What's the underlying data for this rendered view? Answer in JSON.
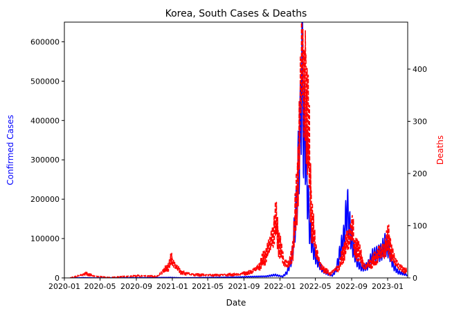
{
  "chart_data": {
    "type": "line",
    "title": "Korea, South Cases & Deaths",
    "xlabel": "Date",
    "ylabel_left": "Confirmed Cases",
    "ylabel_right": "Deaths",
    "colors": {
      "cases": "#0000ff",
      "deaths": "#ff0000",
      "axes": "#000000",
      "background": "#ffffff"
    },
    "x_ticks": [
      "2020-01",
      "2020-05",
      "2020-09",
      "2021-01",
      "2021-05",
      "2021-09",
      "2022-01",
      "2022-05",
      "2022-09",
      "2023-01"
    ],
    "xlim": [
      "2020-01-01",
      "2023-03-10"
    ],
    "y_left_ticks": [
      "0",
      "100000",
      "200000",
      "300000",
      "400000",
      "500000",
      "600000"
    ],
    "ylim_left": [
      0,
      650000
    ],
    "y_right_ticks": [
      "0",
      "100",
      "200",
      "300",
      "400"
    ],
    "ylim_right": [
      0,
      490
    ],
    "grid": false,
    "series": [
      {
        "key": "cases",
        "axis": "left",
        "line_style": "solid",
        "points": [
          [
            "2020-01-20",
            0
          ],
          [
            "2020-02-25",
            500
          ],
          [
            "2020-03-03",
            800
          ],
          [
            "2020-04-10",
            100
          ],
          [
            "2020-08-27",
            400
          ],
          [
            "2020-12-25",
            1200
          ],
          [
            "2021-02-01",
            400
          ],
          [
            "2021-07-25",
            1800
          ],
          [
            "2021-09-25",
            3200
          ],
          [
            "2021-11-15",
            4000
          ],
          [
            "2021-12-15",
            7500
          ],
          [
            "2022-01-10",
            3500
          ],
          [
            "2022-01-25",
            14000
          ],
          [
            "2022-02-10",
            50000
          ],
          [
            "2022-02-25",
            170000
          ],
          [
            "2022-03-08",
            340000
          ],
          [
            "2022-03-12",
            380000
          ],
          [
            "2022-03-17",
            620000
          ],
          [
            "2022-03-22",
            350000
          ],
          [
            "2022-03-27",
            380000
          ],
          [
            "2022-04-01",
            280000
          ],
          [
            "2022-04-05",
            210000
          ],
          [
            "2022-04-12",
            120000
          ],
          [
            "2022-04-20",
            90000
          ],
          [
            "2022-04-28",
            60000
          ],
          [
            "2022-05-10",
            40000
          ],
          [
            "2022-05-25",
            20000
          ],
          [
            "2022-06-15",
            9000
          ],
          [
            "2022-06-28",
            6000
          ],
          [
            "2022-07-10",
            20000
          ],
          [
            "2022-07-25",
            70000
          ],
          [
            "2022-08-05",
            100000
          ],
          [
            "2022-08-17",
            180000
          ],
          [
            "2022-08-25",
            130000
          ],
          [
            "2022-09-05",
            80000
          ],
          [
            "2022-09-20",
            40000
          ],
          [
            "2022-10-05",
            25000
          ],
          [
            "2022-10-25",
            30000
          ],
          [
            "2022-11-10",
            55000
          ],
          [
            "2022-11-25",
            60000
          ],
          [
            "2022-12-10",
            65000
          ],
          [
            "2022-12-22",
            85000
          ],
          [
            "2023-01-05",
            75000
          ],
          [
            "2023-01-20",
            30000
          ],
          [
            "2023-02-05",
            15000
          ],
          [
            "2023-02-25",
            10000
          ],
          [
            "2023-03-08",
            8000
          ]
        ]
      },
      {
        "key": "deaths",
        "axis": "right",
        "line_style": "dashed",
        "points": [
          [
            "2020-01-20",
            0
          ],
          [
            "2020-03-15",
            8
          ],
          [
            "2020-04-15",
            3
          ],
          [
            "2020-06-01",
            1
          ],
          [
            "2020-09-05",
            4
          ],
          [
            "2020-11-10",
            3
          ],
          [
            "2020-12-20",
            22
          ],
          [
            "2020-12-29",
            38
          ],
          [
            "2021-01-08",
            25
          ],
          [
            "2021-02-01",
            10
          ],
          [
            "2021-03-15",
            6
          ],
          [
            "2021-06-01",
            5
          ],
          [
            "2021-08-15",
            7
          ],
          [
            "2021-09-20",
            10
          ],
          [
            "2021-10-20",
            20
          ],
          [
            "2021-11-20",
            50
          ],
          [
            "2021-12-10",
            90
          ],
          [
            "2021-12-18",
            110
          ],
          [
            "2021-12-28",
            70
          ],
          [
            "2022-01-15",
            30
          ],
          [
            "2022-02-01",
            25
          ],
          [
            "2022-02-15",
            60
          ],
          [
            "2022-03-01",
            180
          ],
          [
            "2022-03-10",
            300
          ],
          [
            "2022-03-17",
            470
          ],
          [
            "2022-03-22",
            320
          ],
          [
            "2022-03-28",
            400
          ],
          [
            "2022-04-03",
            300
          ],
          [
            "2022-04-10",
            250
          ],
          [
            "2022-04-18",
            120
          ],
          [
            "2022-05-01",
            60
          ],
          [
            "2022-05-20",
            20
          ],
          [
            "2022-06-20",
            8
          ],
          [
            "2022-07-20",
            20
          ],
          [
            "2022-08-10",
            60
          ],
          [
            "2022-08-25",
            80
          ],
          [
            "2022-09-05",
            110
          ],
          [
            "2022-09-10",
            50
          ],
          [
            "2022-09-20",
            60
          ],
          [
            "2022-10-15",
            20
          ],
          [
            "2022-11-10",
            30
          ],
          [
            "2022-12-01",
            45
          ],
          [
            "2022-12-20",
            55
          ],
          [
            "2023-01-05",
            75
          ],
          [
            "2023-01-15",
            45
          ],
          [
            "2023-02-10",
            20
          ],
          [
            "2023-03-08",
            12
          ]
        ]
      }
    ]
  }
}
